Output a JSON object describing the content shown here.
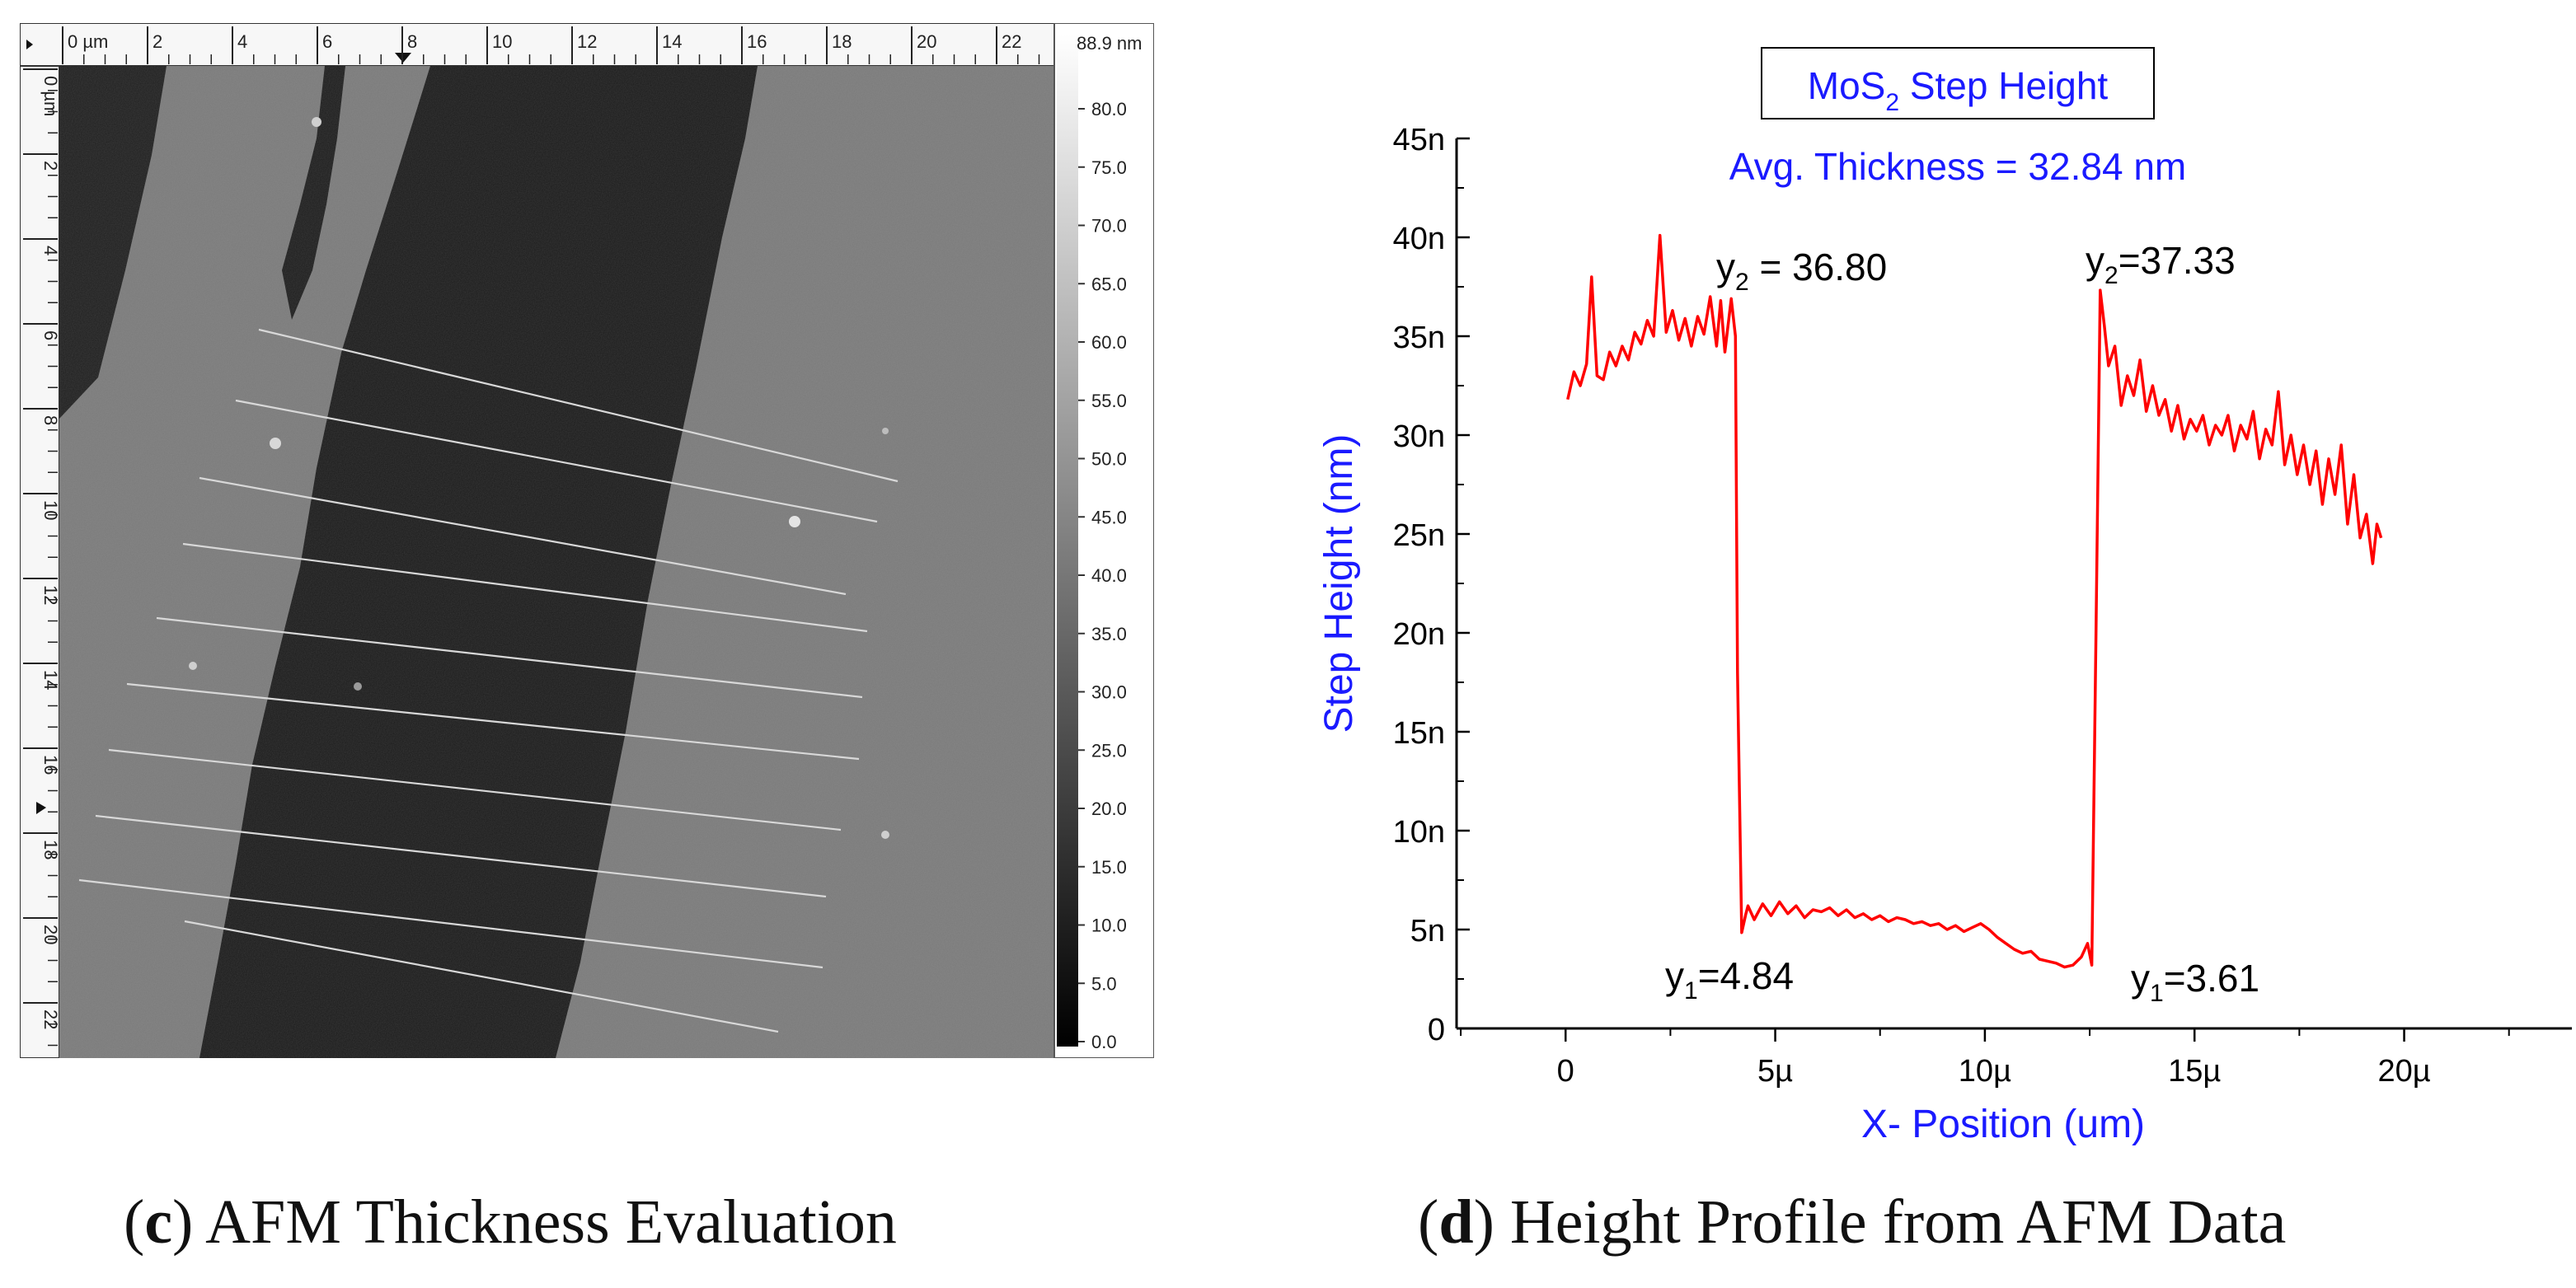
{
  "afm_panel": {
    "ruler_x_ticks": [
      "0 µm",
      "2",
      "4",
      "6",
      "8",
      "10",
      "12",
      "14",
      "16",
      "18",
      "20",
      "22"
    ],
    "ruler_y_ticks": [
      "0 µm",
      "2",
      "4",
      "6",
      "8",
      "10",
      "12",
      "14",
      "16",
      "18",
      "20",
      "22"
    ],
    "scale_max_label": "88.9 nm",
    "scale_labels": [
      "80.0",
      "75.0",
      "70.0",
      "65.0",
      "60.0",
      "55.0",
      "50.0",
      "45.0",
      "40.0",
      "35.0",
      "30.0",
      "25.0",
      "20.0",
      "15.0",
      "10.0",
      "5.0",
      "0.0"
    ],
    "scan_line_count": 10,
    "colors": {
      "substrate": "#7a7a7a",
      "flake": "#1a1a1a",
      "scan_line": "#d8d8d8"
    }
  },
  "chart_data": {
    "type": "line",
    "title": "MoS2 Step Height",
    "title_main": "MoS",
    "title_sub": "2",
    "title_rest": " Step Height",
    "subtitle": "Avg. Thickness = 32.84 nm",
    "xlabel": "X- Position (um)",
    "ylabel": "Step Height (nm)",
    "xlim": [
      -2.6,
      24
    ],
    "ylim": [
      0,
      45
    ],
    "x_ticks": [
      0,
      5,
      10,
      15,
      20
    ],
    "x_tick_labels": [
      "0",
      "5µ",
      "10µ",
      "15µ",
      "20µ"
    ],
    "y_ticks": [
      0,
      5,
      10,
      15,
      20,
      25,
      30,
      35,
      40,
      45
    ],
    "y_tick_labels": [
      "0",
      "5n",
      "10n",
      "15n",
      "20n",
      "25n",
      "30n",
      "35n",
      "40n",
      "45n"
    ],
    "annotations": {
      "y2_left": {
        "sym": "y",
        "sub": "2",
        "text": " = 36.80"
      },
      "y2_right": {
        "sym": "y",
        "sub": "2",
        "text": "=37.33"
      },
      "y1_left": {
        "sym": "y",
        "sub": "1",
        "text": "=4.84"
      },
      "y1_right": {
        "sym": "y",
        "sub": "1",
        "text": "=3.61"
      }
    },
    "colors": {
      "line": "#ff0000",
      "title": "#1a1aff",
      "axis": "#000000"
    },
    "series": [
      {
        "x": [
          0.05,
          0.2,
          0.35,
          0.5,
          0.62,
          0.75,
          0.9,
          1.05,
          1.2,
          1.35,
          1.5,
          1.65,
          1.8,
          1.95,
          2.1,
          2.25,
          2.4,
          2.55,
          2.7,
          2.85,
          3.0,
          3.15,
          3.3,
          3.45,
          3.6,
          3.7,
          3.8,
          3.95,
          4.05,
          4.1,
          4.2,
          4.3,
          4.35,
          4.5,
          4.7,
          4.9,
          5.1,
          5.3,
          5.5,
          5.7,
          5.9,
          6.1,
          6.3,
          6.5,
          6.7,
          6.9,
          7.1,
          7.3,
          7.5,
          7.7,
          7.9,
          8.1,
          8.3,
          8.5,
          8.7,
          8.9,
          9.1,
          9.3,
          9.5,
          9.7,
          9.9,
          10.1,
          10.3,
          10.5,
          10.7,
          10.9,
          11.1,
          11.3,
          11.5,
          11.7,
          11.9,
          12.1,
          12.3,
          12.45,
          12.55,
          12.65,
          12.75,
          12.85,
          12.95,
          13.1,
          13.25,
          13.4,
          13.55,
          13.7,
          13.85,
          14.0,
          14.15,
          14.3,
          14.45,
          14.6,
          14.75,
          14.9,
          15.05,
          15.2,
          15.35,
          15.5,
          15.65,
          15.8,
          15.95,
          16.1,
          16.25,
          16.4,
          16.55,
          16.7,
          16.85,
          17.0,
          17.15,
          17.3,
          17.45,
          17.6,
          17.75,
          17.9,
          18.05,
          18.2,
          18.35,
          18.5,
          18.65,
          18.8,
          18.95,
          19.1,
          19.25,
          19.35,
          19.45
        ],
        "y": [
          31.8,
          33.2,
          32.5,
          33.6,
          38.0,
          33.0,
          32.8,
          34.2,
          33.5,
          34.5,
          33.8,
          35.2,
          34.6,
          35.8,
          35.0,
          40.1,
          35.2,
          36.3,
          34.8,
          35.9,
          34.5,
          36.0,
          35.1,
          37.0,
          34.5,
          36.8,
          34.2,
          36.9,
          35.0,
          18.0,
          4.84,
          5.8,
          6.2,
          5.5,
          6.3,
          5.7,
          6.4,
          5.8,
          6.2,
          5.6,
          6.0,
          5.9,
          6.1,
          5.7,
          6.0,
          5.6,
          5.8,
          5.5,
          5.7,
          5.4,
          5.6,
          5.5,
          5.3,
          5.4,
          5.2,
          5.3,
          5.0,
          5.2,
          4.9,
          5.1,
          5.3,
          5.0,
          4.6,
          4.3,
          4.0,
          3.8,
          3.9,
          3.5,
          3.4,
          3.3,
          3.1,
          3.2,
          3.61,
          4.3,
          3.2,
          20.0,
          37.33,
          35.5,
          33.5,
          34.5,
          31.5,
          33.0,
          32.0,
          33.8,
          31.2,
          32.5,
          31.0,
          31.8,
          30.2,
          31.5,
          29.8,
          30.8,
          30.2,
          31.0,
          29.5,
          30.5,
          30.0,
          31.0,
          29.2,
          30.5,
          29.8,
          31.2,
          28.8,
          30.3,
          29.5,
          32.2,
          28.5,
          30.0,
          28.0,
          29.5,
          27.5,
          29.2,
          26.5,
          28.8,
          27.0,
          29.5,
          25.5,
          28.0,
          24.8,
          26.0,
          23.5,
          25.5,
          24.8
        ]
      }
    ]
  },
  "captions": {
    "c": {
      "letter": "c",
      "text": " AFM Thickness Evaluation"
    },
    "d": {
      "letter": "d",
      "text": " Height Profile from AFM Data"
    }
  }
}
